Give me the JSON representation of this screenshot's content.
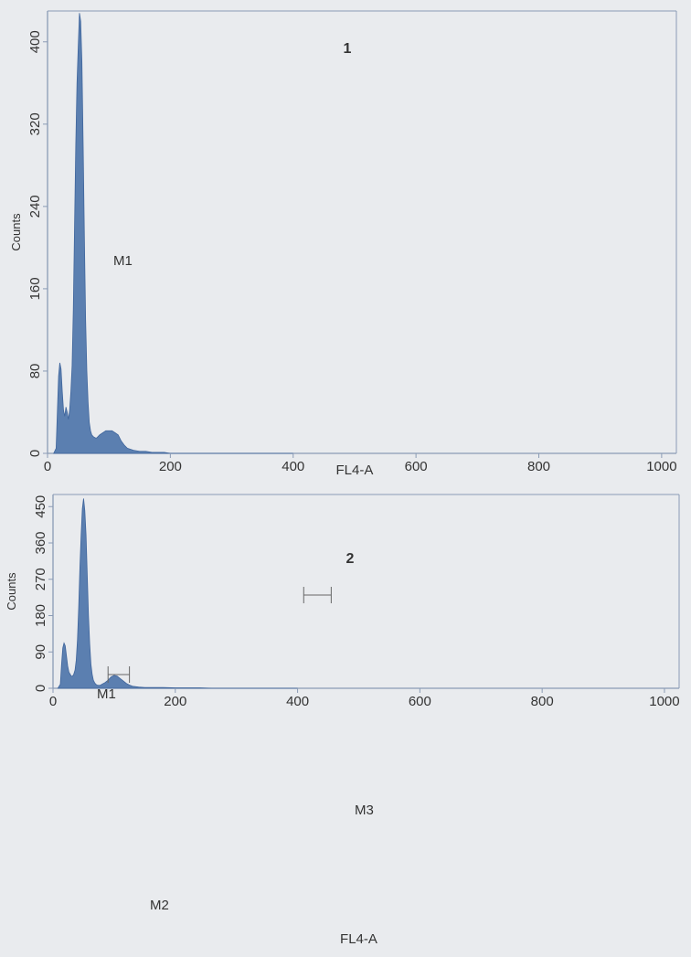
{
  "colors": {
    "fill": "#5b7fb0",
    "axis": "#8a9bb5",
    "background": "#e9ebee",
    "text": "#333333"
  },
  "chart_data": [
    {
      "type": "area",
      "panel_label": "1",
      "xlabel": "FL4-A",
      "ylabel": "Counts",
      "xlim": [
        0,
        1024
      ],
      "ylim": [
        0,
        430
      ],
      "xticks": [
        0,
        200,
        400,
        600,
        800,
        1000
      ],
      "yticks": [
        0,
        80,
        160,
        240,
        320,
        400
      ],
      "series": [
        {
          "x": [
            10,
            14,
            16,
            18,
            20,
            22,
            24,
            26,
            28,
            30,
            32,
            34,
            36,
            38,
            40,
            42,
            44,
            46,
            48,
            50,
            52,
            54,
            56,
            58,
            60,
            62,
            64,
            66,
            68,
            70,
            72,
            75,
            78,
            80,
            85,
            90,
            95,
            100,
            105,
            110,
            115,
            120,
            125,
            130,
            140,
            150,
            160,
            170,
            180,
            190,
            200,
            220,
            240,
            260,
            300,
            400
          ],
          "y": [
            0,
            5,
            40,
            75,
            88,
            82,
            60,
            42,
            36,
            45,
            40,
            33,
            42,
            60,
            85,
            140,
            220,
            300,
            360,
            395,
            428,
            420,
            380,
            300,
            210,
            130,
            80,
            50,
            30,
            22,
            18,
            16,
            15,
            15,
            18,
            20,
            22,
            22,
            22,
            20,
            18,
            12,
            8,
            5,
            3,
            2,
            2,
            1,
            1,
            1,
            0,
            0,
            0,
            0,
            0,
            0
          ]
        }
      ],
      "markers": [
        {
          "label": "M1"
        }
      ]
    },
    {
      "type": "area",
      "panel_label": "2",
      "xlabel": "FL4-A",
      "ylabel": "Counts",
      "xlim": [
        0,
        1024
      ],
      "ylim": [
        0,
        480
      ],
      "xticks": [
        0,
        200,
        400,
        600,
        800,
        1000
      ],
      "yticks": [
        0,
        90,
        180,
        270,
        360,
        450
      ],
      "series": [
        {
          "x": [
            8,
            12,
            14,
            16,
            18,
            20,
            22,
            24,
            26,
            28,
            30,
            32,
            34,
            36,
            38,
            40,
            42,
            44,
            46,
            48,
            50,
            52,
            54,
            56,
            58,
            60,
            62,
            64,
            66,
            68,
            70,
            72,
            75,
            78,
            80,
            85,
            90,
            95,
            100,
            105,
            110,
            115,
            120,
            125,
            130,
            140,
            150,
            160,
            180,
            200,
            220,
            240,
            260,
            300,
            400
          ],
          "y": [
            0,
            10,
            60,
            100,
            112,
            105,
            80,
            55,
            40,
            35,
            30,
            30,
            35,
            45,
            70,
            120,
            200,
            300,
            380,
            445,
            470,
            440,
            380,
            280,
            180,
            110,
            60,
            35,
            20,
            14,
            10,
            8,
            7,
            8,
            10,
            14,
            20,
            28,
            32,
            30,
            24,
            18,
            12,
            8,
            5,
            3,
            2,
            2,
            2,
            1,
            1,
            1,
            0,
            0,
            0
          ]
        }
      ],
      "markers": [
        {
          "label": "M1",
          "range": []
        },
        {
          "label": "M2",
          "range": [
            90,
            125
          ]
        },
        {
          "label": "M3",
          "range": [
            410,
            455
          ]
        }
      ]
    }
  ]
}
